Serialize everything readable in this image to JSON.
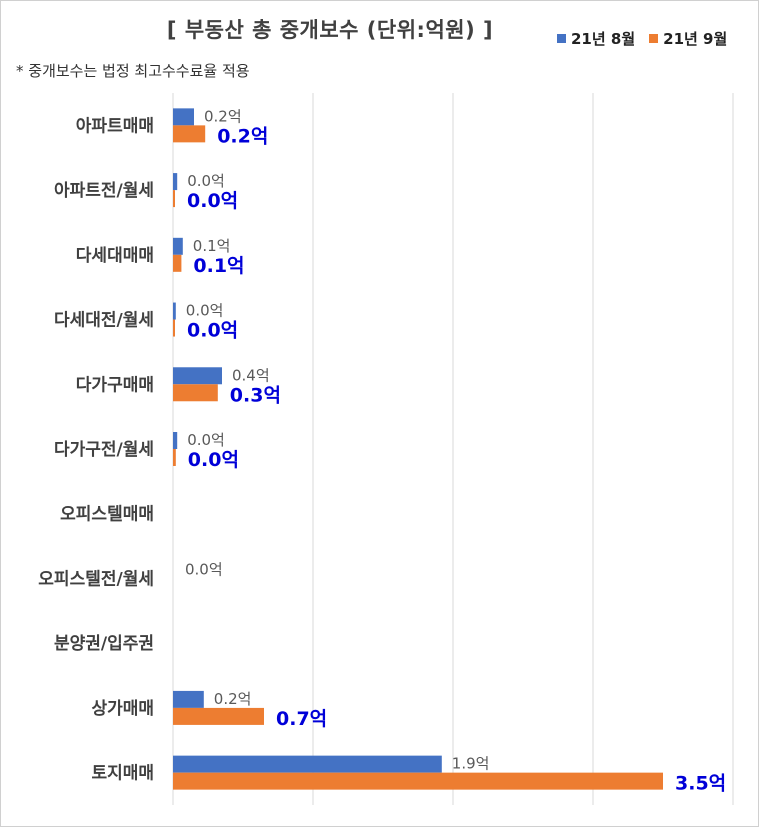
{
  "chart_data": {
    "type": "bar",
    "orientation": "horizontal",
    "title": "[ 부동산 총 중개보수 (단위:억원) ]",
    "note": "* 중개보수는 법정 최고수수료율 적용",
    "categories": [
      "아파트매매",
      "아파트전/월세",
      "다세대매매",
      "다세대전/월세",
      "다가구매매",
      "다가구전/월세",
      "오피스텔매매",
      "오피스텔전/월세",
      "분양권/입주권",
      "상가매매",
      "토지매매"
    ],
    "series": [
      {
        "name": "21년 8월",
        "color": "#4472c4",
        "values": [
          0.15,
          0.03,
          0.07,
          0.02,
          0.35,
          0.03,
          0,
          0,
          0,
          0.22,
          1.92
        ],
        "labels": [
          "0.2억",
          "0.0억",
          "0.1억",
          "0.0억",
          "0.4억",
          "0.0억",
          "",
          "0.0억",
          "",
          "0.2억",
          "1.9억"
        ]
      },
      {
        "name": "21년 9월",
        "color": "#ed7d31",
        "values": [
          0.23,
          0.01,
          0.06,
          0.01,
          0.32,
          0.02,
          0,
          0,
          0,
          0.65,
          3.5
        ],
        "labels": [
          "0.2억",
          "0.0억",
          "0.1억",
          "0.0억",
          "0.3억",
          "0.0억",
          "",
          "",
          "",
          "0.7억",
          "3.5억"
        ]
      }
    ],
    "xlim": [
      0,
      4
    ],
    "grid": true,
    "legend": "top-right"
  },
  "colors": {
    "aug": "#4472c4",
    "sep": "#ed7d31",
    "sep_label": "#0000d8",
    "grid": "#d9d9d9"
  }
}
